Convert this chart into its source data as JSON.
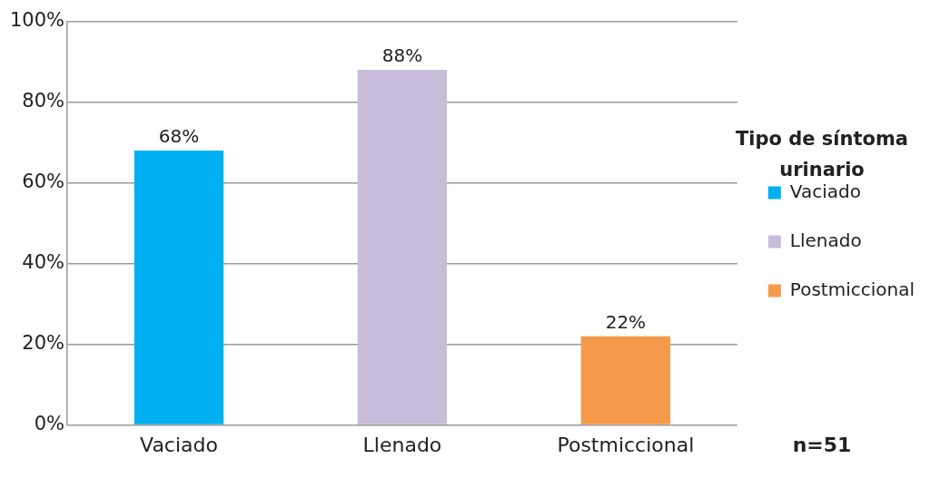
{
  "chart_data": {
    "type": "bar",
    "categories": [
      "Vaciado",
      "Llenado",
      "Postmiccional"
    ],
    "series": [
      {
        "name": "Vaciado",
        "color": "#00b0f0",
        "values": [
          68,
          null,
          null
        ],
        "value_labels": [
          "68%",
          null,
          null
        ]
      },
      {
        "name": "Llenado",
        "color": "#c7bdda",
        "values": [
          null,
          88,
          null
        ],
        "value_labels": [
          null,
          "88%",
          null
        ]
      },
      {
        "name": "Postmiccional",
        "color": "#f59a4b",
        "values": [
          null,
          null,
          22
        ],
        "value_labels": [
          null,
          null,
          "22%"
        ]
      }
    ],
    "ylim": [
      0,
      100
    ],
    "yticks": [
      {
        "value": 0,
        "label": "0%"
      },
      {
        "value": 20,
        "label": "20%"
      },
      {
        "value": 40,
        "label": "40%"
      },
      {
        "value": 60,
        "label": "60%"
      },
      {
        "value": 80,
        "label": "80%"
      },
      {
        "value": 100,
        "label": "100%"
      }
    ],
    "grid": "y",
    "legend": "right",
    "legend_title": "Tipo de síntoma urinario",
    "annotations": [
      "n=51"
    ]
  }
}
